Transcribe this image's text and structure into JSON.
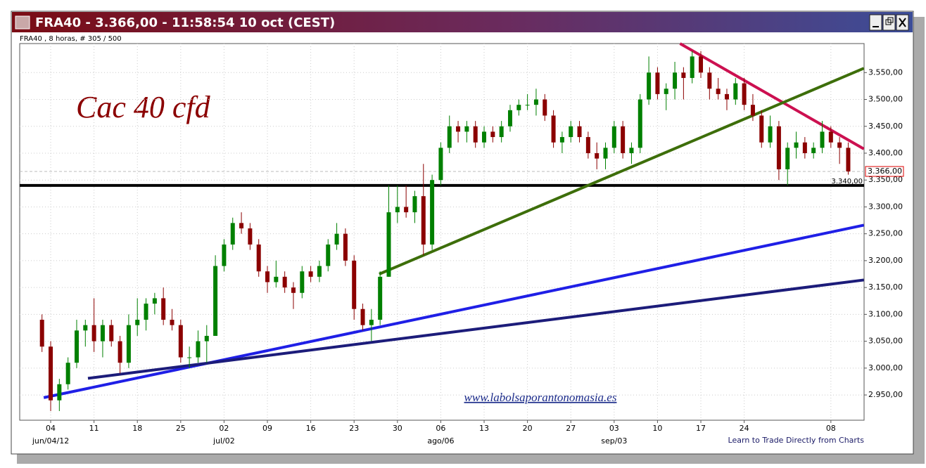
{
  "window_title": "FRA40 - 3.366,00 - 11:58:54  10 oct (CEST)",
  "chart_data": {
    "type": "candlestick",
    "subtitle": "FRA40 , 8 horas, # 305 / 500",
    "title": "Cac 40 cfd",
    "watermark": "www.labolsaporantonomasia.es",
    "footer": "Learn to Trade Directly from Charts",
    "up_color": "#008000",
    "down_color": "#8b0000",
    "ylim": [
      2903,
      3604
    ],
    "yticks": [
      {
        "value": 2950,
        "label": "2.950,00"
      },
      {
        "value": 3000,
        "label": "3.000,00"
      },
      {
        "value": 3050,
        "label": "3.050,00"
      },
      {
        "value": 3100,
        "label": "3.100,00"
      },
      {
        "value": 3150,
        "label": "3.150,00"
      },
      {
        "value": 3200,
        "label": "3.200,00"
      },
      {
        "value": 3250,
        "label": "3.250,00"
      },
      {
        "value": 3300,
        "label": "3.300,00"
      },
      {
        "value": 3350,
        "label": "3.350,00"
      },
      {
        "value": 3400,
        "label": "3.400,00"
      },
      {
        "value": 3450,
        "label": "3.450,00"
      },
      {
        "value": 3500,
        "label": "3.500,00"
      },
      {
        "value": 3550,
        "label": "3.550,00"
      }
    ],
    "grid": true,
    "categories": [
      null,
      "04",
      null,
      null,
      null,
      null,
      "11",
      null,
      null,
      null,
      null,
      "18",
      null,
      null,
      null,
      null,
      "25",
      null,
      null,
      null,
      null,
      "02",
      null,
      null,
      null,
      null,
      "09",
      null,
      null,
      null,
      null,
      "16",
      null,
      null,
      null,
      null,
      "23",
      null,
      null,
      null,
      null,
      "30",
      null,
      null,
      null,
      null,
      "06",
      null,
      null,
      null,
      null,
      "13",
      null,
      null,
      null,
      null,
      "20",
      null,
      null,
      null,
      null,
      "27",
      null,
      null,
      null,
      null,
      "03",
      null,
      null,
      null,
      null,
      "10",
      null,
      null,
      null,
      null,
      "17",
      null,
      null,
      null,
      null,
      "24",
      null,
      null,
      null,
      null,
      null,
      null,
      null,
      null,
      null,
      "08",
      null,
      null
    ],
    "month_labels": [
      null,
      "jun/04/12",
      null,
      null,
      null,
      null,
      null,
      null,
      null,
      null,
      null,
      null,
      null,
      null,
      null,
      null,
      null,
      null,
      null,
      null,
      null,
      "jul/02",
      null,
      null,
      null,
      null,
      null,
      null,
      null,
      null,
      null,
      null,
      null,
      null,
      null,
      null,
      null,
      null,
      null,
      null,
      null,
      null,
      null,
      null,
      null,
      null,
      "ago/06",
      null,
      null,
      null,
      null,
      null,
      null,
      null,
      null,
      null,
      null,
      null,
      null,
      null,
      null,
      null,
      null,
      null,
      null,
      null,
      "sep/03",
      null,
      null,
      null,
      null,
      null,
      null,
      null,
      null,
      null,
      null,
      null,
      null,
      null,
      null,
      null,
      null,
      null,
      null,
      null,
      null,
      null,
      null,
      null,
      null,
      null,
      null,
      null
    ],
    "ohlc": [
      [
        3090,
        3100,
        3030,
        3040
      ],
      [
        3040,
        3050,
        2920,
        2940
      ],
      [
        2940,
        2980,
        2920,
        2970
      ],
      [
        2970,
        3020,
        2960,
        3010
      ],
      [
        3010,
        3090,
        3000,
        3070
      ],
      [
        3070,
        3090,
        3040,
        3080
      ],
      [
        3080,
        3130,
        3030,
        3050
      ],
      [
        3050,
        3090,
        3020,
        3080
      ],
      [
        3080,
        3090,
        3040,
        3050
      ],
      [
        3050,
        3060,
        2990,
        3010
      ],
      [
        3010,
        3100,
        3000,
        3080
      ],
      [
        3080,
        3130,
        3060,
        3090
      ],
      [
        3090,
        3130,
        3070,
        3120
      ],
      [
        3120,
        3140,
        3100,
        3130
      ],
      [
        3130,
        3150,
        3080,
        3090
      ],
      [
        3090,
        3110,
        3070,
        3080
      ],
      [
        3080,
        3090,
        3010,
        3020
      ],
      [
        3020,
        3040,
        3000,
        3020
      ],
      [
        3020,
        3070,
        3010,
        3050
      ],
      [
        3050,
        3080,
        3010,
        3060
      ],
      [
        3060,
        3210,
        3060,
        3190
      ],
      [
        3190,
        3240,
        3180,
        3230
      ],
      [
        3230,
        3280,
        3220,
        3270
      ],
      [
        3270,
        3290,
        3250,
        3260
      ],
      [
        3260,
        3270,
        3220,
        3230
      ],
      [
        3230,
        3240,
        3170,
        3180
      ],
      [
        3180,
        3190,
        3140,
        3160
      ],
      [
        3160,
        3200,
        3150,
        3170
      ],
      [
        3170,
        3180,
        3140,
        3150
      ],
      [
        3150,
        3160,
        3110,
        3140
      ],
      [
        3140,
        3190,
        3130,
        3180
      ],
      [
        3180,
        3190,
        3160,
        3170
      ],
      [
        3170,
        3200,
        3160,
        3190
      ],
      [
        3190,
        3240,
        3180,
        3230
      ],
      [
        3230,
        3270,
        3220,
        3250
      ],
      [
        3250,
        3260,
        3190,
        3200
      ],
      [
        3200,
        3210,
        3090,
        3110
      ],
      [
        3110,
        3120,
        3070,
        3080
      ],
      [
        3080,
        3110,
        3050,
        3090
      ],
      [
        3090,
        3180,
        3080,
        3170
      ],
      [
        3170,
        3340,
        3170,
        3290
      ],
      [
        3290,
        3340,
        3270,
        3300
      ],
      [
        3300,
        3340,
        3280,
        3290
      ],
      [
        3290,
        3330,
        3270,
        3320
      ],
      [
        3320,
        3380,
        3210,
        3230
      ],
      [
        3230,
        3360,
        3220,
        3350
      ],
      [
        3350,
        3420,
        3340,
        3410
      ],
      [
        3410,
        3470,
        3400,
        3450
      ],
      [
        3450,
        3460,
        3420,
        3440
      ],
      [
        3440,
        3460,
        3420,
        3450
      ],
      [
        3450,
        3460,
        3410,
        3420
      ],
      [
        3420,
        3450,
        3410,
        3440
      ],
      [
        3440,
        3450,
        3420,
        3430
      ],
      [
        3430,
        3460,
        3420,
        3450
      ],
      [
        3450,
        3490,
        3440,
        3480
      ],
      [
        3480,
        3500,
        3470,
        3490
      ],
      [
        3490,
        3510,
        3480,
        3490
      ],
      [
        3490,
        3520,
        3470,
        3500
      ],
      [
        3500,
        3510,
        3460,
        3470
      ],
      [
        3470,
        3480,
        3410,
        3420
      ],
      [
        3420,
        3440,
        3400,
        3430
      ],
      [
        3430,
        3460,
        3420,
        3450
      ],
      [
        3450,
        3460,
        3420,
        3430
      ],
      [
        3430,
        3440,
        3390,
        3400
      ],
      [
        3400,
        3420,
        3370,
        3390
      ],
      [
        3390,
        3420,
        3370,
        3410
      ],
      [
        3410,
        3460,
        3400,
        3450
      ],
      [
        3450,
        3460,
        3390,
        3400
      ],
      [
        3400,
        3420,
        3380,
        3410
      ],
      [
        3410,
        3510,
        3400,
        3500
      ],
      [
        3500,
        3580,
        3490,
        3550
      ],
      [
        3550,
        3560,
        3500,
        3510
      ],
      [
        3510,
        3530,
        3480,
        3520
      ],
      [
        3520,
        3570,
        3500,
        3550
      ],
      [
        3550,
        3560,
        3500,
        3540
      ],
      [
        3540,
        3590,
        3530,
        3580
      ],
      [
        3580,
        3590,
        3540,
        3550
      ],
      [
        3550,
        3560,
        3500,
        3520
      ],
      [
        3520,
        3540,
        3500,
        3510
      ],
      [
        3510,
        3520,
        3480,
        3500
      ],
      [
        3500,
        3540,
        3490,
        3530
      ],
      [
        3530,
        3540,
        3480,
        3490
      ],
      [
        3490,
        3510,
        3460,
        3470
      ],
      [
        3470,
        3480,
        3410,
        3420
      ],
      [
        3420,
        3470,
        3410,
        3450
      ],
      [
        3450,
        3460,
        3350,
        3370
      ],
      [
        3370,
        3420,
        3340,
        3410
      ],
      [
        3410,
        3440,
        3390,
        3420
      ],
      [
        3420,
        3430,
        3390,
        3400
      ],
      [
        3400,
        3420,
        3390,
        3410
      ],
      [
        3410,
        3460,
        3400,
        3440
      ],
      [
        3440,
        3450,
        3410,
        3420
      ],
      [
        3420,
        3430,
        3380,
        3410
      ],
      [
        3410,
        3420,
        3360,
        3366
      ]
    ],
    "last_price": {
      "value": 3366,
      "label": "3.366,00"
    },
    "support": {
      "value": 3340,
      "label": "3.340,00",
      "color": "#000000"
    },
    "trendlines": [
      {
        "color": "#cc1050",
        "x": [
          73.6,
          94.8
        ],
        "y": [
          3604,
          3408
        ]
      },
      {
        "color": "#3d6e0a",
        "x": [
          38.9,
          94.8
        ],
        "y": [
          3175,
          3558
        ]
      },
      {
        "color": "#1f1fe6",
        "x": [
          0.2,
          94.8
        ],
        "y": [
          2945,
          3266
        ]
      },
      {
        "color": "#1c1c7a",
        "x": [
          5.3,
          94.8
        ],
        "y": [
          2981,
          3164
        ]
      }
    ]
  }
}
